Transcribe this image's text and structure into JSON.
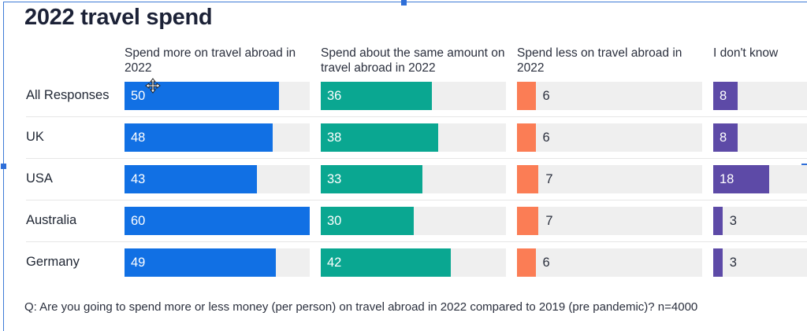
{
  "chart_data": {
    "type": "bar",
    "title": "2022 travel spend",
    "categories": [
      "All Responses",
      "UK",
      "USA",
      "Australia",
      "Germany"
    ],
    "series": [
      {
        "name": "Spend more on travel abroad in 2022",
        "color": "#1170e4",
        "values": [
          50,
          48,
          43,
          60,
          49
        ]
      },
      {
        "name": "Spend about the same amount on travel abroad in 2022",
        "color": "#0aa791",
        "values": [
          36,
          38,
          33,
          30,
          42
        ]
      },
      {
        "name": "Spend less on travel abroad in 2022",
        "color": "#fb7d55",
        "values": [
          6,
          6,
          7,
          7,
          6
        ]
      },
      {
        "name": "I don't know",
        "color": "#5d4aa7",
        "values": [
          8,
          8,
          18,
          3,
          3
        ]
      }
    ],
    "xlim": [
      0,
      60
    ],
    "footnote": "Q: Are you going to spend more or less money (per person) on travel abroad in 2022 compared to 2019 (pre pandemic)? n=4000"
  },
  "colors": {
    "track": "#efefef",
    "title": "#1c2237",
    "selection": "#2f6fd8"
  }
}
